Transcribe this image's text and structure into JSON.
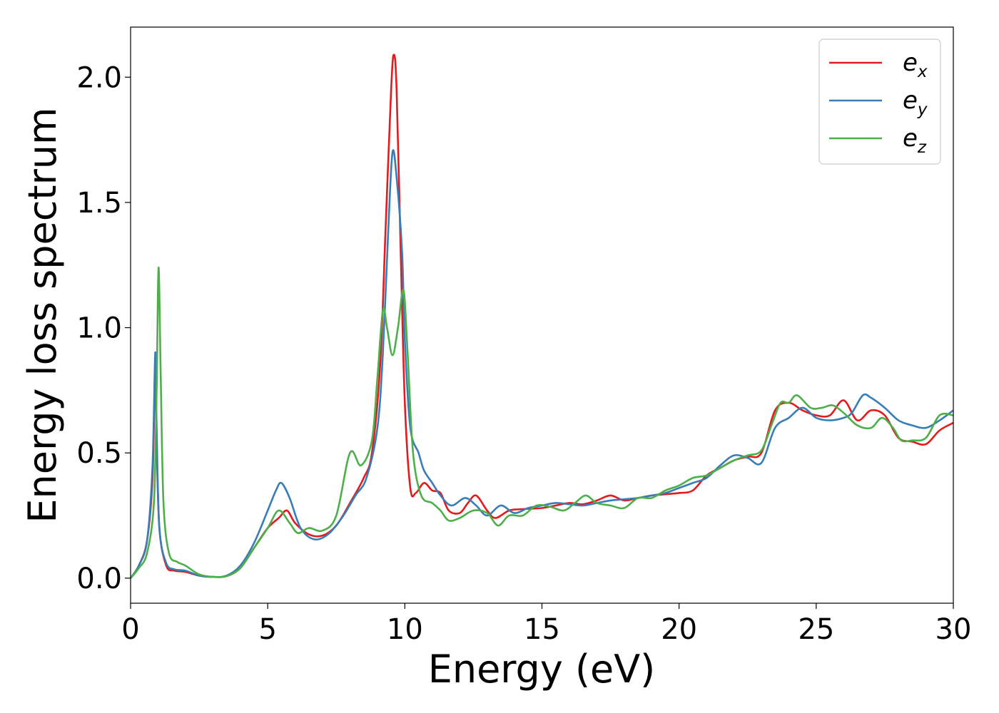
{
  "chart_data": {
    "type": "line",
    "xlabel": "Energy (eV)",
    "ylabel": "Energy loss spectrum",
    "xlim": [
      0,
      30
    ],
    "ylim": [
      -0.1,
      2.2
    ],
    "xticks": [
      0,
      5,
      10,
      15,
      20,
      25,
      30
    ],
    "xtick_labels": [
      "0",
      "5",
      "10",
      "15",
      "20",
      "25",
      "30"
    ],
    "yticks": [
      0.0,
      0.5,
      1.0,
      1.5,
      2.0
    ],
    "ytick_labels": [
      "0.0",
      "0.5",
      "1.0",
      "1.5",
      "2.0"
    ],
    "grid": false,
    "legend_position": "top-right",
    "series": [
      {
        "name": "e",
        "subscript": "x",
        "color": "#e41a1c",
        "points": [
          [
            0,
            0
          ],
          [
            0.3,
            0.05
          ],
          [
            0.6,
            0.15
          ],
          [
            0.8,
            0.4
          ],
          [
            0.9,
            0.85
          ],
          [
            0.95,
            0.55
          ],
          [
            1.05,
            0.2
          ],
          [
            1.3,
            0.05
          ],
          [
            1.6,
            0.03
          ],
          [
            2,
            0.025
          ],
          [
            2.5,
            0.01
          ],
          [
            3,
            0.005
          ],
          [
            3.5,
            0.008
          ],
          [
            4,
            0.04
          ],
          [
            4.5,
            0.12
          ],
          [
            5,
            0.2
          ],
          [
            5.4,
            0.24
          ],
          [
            5.7,
            0.27
          ],
          [
            6,
            0.22
          ],
          [
            6.5,
            0.175
          ],
          [
            7,
            0.17
          ],
          [
            7.5,
            0.21
          ],
          [
            8,
            0.3
          ],
          [
            8.5,
            0.4
          ],
          [
            8.8,
            0.5
          ],
          [
            9.1,
            0.85
          ],
          [
            9.3,
            1.4
          ],
          [
            9.5,
            1.95
          ],
          [
            9.6,
            2.09
          ],
          [
            9.7,
            1.95
          ],
          [
            9.85,
            1.3
          ],
          [
            10,
            0.7
          ],
          [
            10.2,
            0.36
          ],
          [
            10.4,
            0.34
          ],
          [
            10.7,
            0.38
          ],
          [
            11,
            0.35
          ],
          [
            11.3,
            0.34
          ],
          [
            11.6,
            0.27
          ],
          [
            12,
            0.26
          ],
          [
            12.3,
            0.3
          ],
          [
            12.6,
            0.33
          ],
          [
            13,
            0.27
          ],
          [
            13.3,
            0.24
          ],
          [
            13.8,
            0.27
          ],
          [
            14.2,
            0.275
          ],
          [
            15,
            0.28
          ],
          [
            15.5,
            0.29
          ],
          [
            16,
            0.3
          ],
          [
            16.5,
            0.295
          ],
          [
            17,
            0.31
          ],
          [
            17.5,
            0.33
          ],
          [
            18,
            0.31
          ],
          [
            18.5,
            0.32
          ],
          [
            19,
            0.33
          ],
          [
            19.5,
            0.335
          ],
          [
            20,
            0.34
          ],
          [
            20.5,
            0.35
          ],
          [
            21,
            0.41
          ],
          [
            21.5,
            0.44
          ],
          [
            22,
            0.47
          ],
          [
            22.5,
            0.485
          ],
          [
            23,
            0.5
          ],
          [
            23.5,
            0.67
          ],
          [
            24,
            0.7
          ],
          [
            24.5,
            0.67
          ],
          [
            25,
            0.65
          ],
          [
            25.5,
            0.65
          ],
          [
            26,
            0.71
          ],
          [
            26.5,
            0.63
          ],
          [
            27,
            0.67
          ],
          [
            27.5,
            0.65
          ],
          [
            28,
            0.56
          ],
          [
            28.5,
            0.545
          ],
          [
            29,
            0.535
          ],
          [
            29.5,
            0.59
          ],
          [
            30,
            0.62
          ]
        ]
      },
      {
        "name": "e",
        "subscript": "y",
        "color": "#377eb8",
        "points": [
          [
            0,
            0
          ],
          [
            0.3,
            0.05
          ],
          [
            0.6,
            0.15
          ],
          [
            0.8,
            0.45
          ],
          [
            0.9,
            0.9
          ],
          [
            0.95,
            0.6
          ],
          [
            1.05,
            0.2
          ],
          [
            1.3,
            0.06
          ],
          [
            1.6,
            0.035
          ],
          [
            2,
            0.03
          ],
          [
            2.5,
            0.01
          ],
          [
            3,
            0.005
          ],
          [
            3.5,
            0.01
          ],
          [
            4,
            0.05
          ],
          [
            4.5,
            0.14
          ],
          [
            5,
            0.27
          ],
          [
            5.3,
            0.35
          ],
          [
            5.5,
            0.38
          ],
          [
            5.8,
            0.32
          ],
          [
            6.2,
            0.2
          ],
          [
            6.7,
            0.155
          ],
          [
            7.2,
            0.175
          ],
          [
            7.7,
            0.24
          ],
          [
            8.2,
            0.33
          ],
          [
            8.6,
            0.4
          ],
          [
            9,
            0.6
          ],
          [
            9.2,
            0.9
          ],
          [
            9.4,
            1.4
          ],
          [
            9.55,
            1.7
          ],
          [
            9.7,
            1.6
          ],
          [
            9.9,
            1.3
          ],
          [
            10,
            0.95
          ],
          [
            10.2,
            0.6
          ],
          [
            10.5,
            0.5
          ],
          [
            10.7,
            0.43
          ],
          [
            11,
            0.38
          ],
          [
            11.3,
            0.33
          ],
          [
            11.7,
            0.29
          ],
          [
            12.2,
            0.32
          ],
          [
            12.6,
            0.29
          ],
          [
            13,
            0.25
          ],
          [
            13.5,
            0.29
          ],
          [
            14,
            0.26
          ],
          [
            14.5,
            0.28
          ],
          [
            15,
            0.29
          ],
          [
            15.5,
            0.3
          ],
          [
            16,
            0.295
          ],
          [
            16.5,
            0.29
          ],
          [
            17,
            0.3
          ],
          [
            17.5,
            0.31
          ],
          [
            18,
            0.315
          ],
          [
            18.5,
            0.32
          ],
          [
            19,
            0.33
          ],
          [
            19.5,
            0.34
          ],
          [
            20,
            0.36
          ],
          [
            20.5,
            0.38
          ],
          [
            21,
            0.4
          ],
          [
            21.5,
            0.45
          ],
          [
            22,
            0.49
          ],
          [
            22.5,
            0.48
          ],
          [
            23,
            0.46
          ],
          [
            23.5,
            0.6
          ],
          [
            24,
            0.64
          ],
          [
            24.5,
            0.68
          ],
          [
            25,
            0.64
          ],
          [
            25.5,
            0.63
          ],
          [
            26,
            0.64
          ],
          [
            26.3,
            0.66
          ],
          [
            26.7,
            0.73
          ],
          [
            27,
            0.72
          ],
          [
            27.5,
            0.68
          ],
          [
            28,
            0.63
          ],
          [
            28.5,
            0.61
          ],
          [
            29,
            0.6
          ],
          [
            29.5,
            0.63
          ],
          [
            30,
            0.67
          ]
        ]
      },
      {
        "name": "e",
        "subscript": "z",
        "color": "#4daf4a",
        "points": [
          [
            0,
            0
          ],
          [
            0.3,
            0.04
          ],
          [
            0.6,
            0.1
          ],
          [
            0.85,
            0.3
          ],
          [
            0.95,
            0.75
          ],
          [
            1.02,
            1.24
          ],
          [
            1.1,
            0.8
          ],
          [
            1.2,
            0.3
          ],
          [
            1.4,
            0.1
          ],
          [
            1.7,
            0.065
          ],
          [
            2,
            0.05
          ],
          [
            2.5,
            0.015
          ],
          [
            3,
            0.005
          ],
          [
            3.5,
            0.008
          ],
          [
            4,
            0.04
          ],
          [
            4.5,
            0.12
          ],
          [
            5,
            0.2
          ],
          [
            5.4,
            0.27
          ],
          [
            5.8,
            0.22
          ],
          [
            6.1,
            0.18
          ],
          [
            6.5,
            0.2
          ],
          [
            7,
            0.19
          ],
          [
            7.5,
            0.25
          ],
          [
            8,
            0.5
          ],
          [
            8.4,
            0.45
          ],
          [
            8.8,
            0.55
          ],
          [
            9,
            0.8
          ],
          [
            9.2,
            1.07
          ],
          [
            9.35,
            1.0
          ],
          [
            9.55,
            0.89
          ],
          [
            9.75,
            1.0
          ],
          [
            9.95,
            1.15
          ],
          [
            10.1,
            0.9
          ],
          [
            10.3,
            0.5
          ],
          [
            10.6,
            0.33
          ],
          [
            11,
            0.3
          ],
          [
            11.3,
            0.27
          ],
          [
            11.6,
            0.23
          ],
          [
            12,
            0.24
          ],
          [
            12.5,
            0.27
          ],
          [
            13,
            0.26
          ],
          [
            13.4,
            0.21
          ],
          [
            13.8,
            0.25
          ],
          [
            14.3,
            0.25
          ],
          [
            14.8,
            0.29
          ],
          [
            15.3,
            0.285
          ],
          [
            15.8,
            0.27
          ],
          [
            16.2,
            0.3
          ],
          [
            16.6,
            0.33
          ],
          [
            17,
            0.3
          ],
          [
            17.5,
            0.29
          ],
          [
            18,
            0.28
          ],
          [
            18.5,
            0.32
          ],
          [
            19,
            0.32
          ],
          [
            19.5,
            0.35
          ],
          [
            20,
            0.37
          ],
          [
            20.5,
            0.4
          ],
          [
            21,
            0.41
          ],
          [
            21.5,
            0.44
          ],
          [
            22,
            0.47
          ],
          [
            22.5,
            0.49
          ],
          [
            23,
            0.51
          ],
          [
            23.4,
            0.62
          ],
          [
            23.7,
            0.7
          ],
          [
            24,
            0.7
          ],
          [
            24.3,
            0.73
          ],
          [
            24.8,
            0.68
          ],
          [
            25.2,
            0.68
          ],
          [
            25.6,
            0.69
          ],
          [
            26,
            0.66
          ],
          [
            26.5,
            0.61
          ],
          [
            27,
            0.6
          ],
          [
            27.4,
            0.64
          ],
          [
            27.8,
            0.6
          ],
          [
            28.1,
            0.55
          ],
          [
            28.5,
            0.55
          ],
          [
            29,
            0.56
          ],
          [
            29.5,
            0.65
          ],
          [
            30,
            0.65
          ]
        ]
      }
    ]
  }
}
